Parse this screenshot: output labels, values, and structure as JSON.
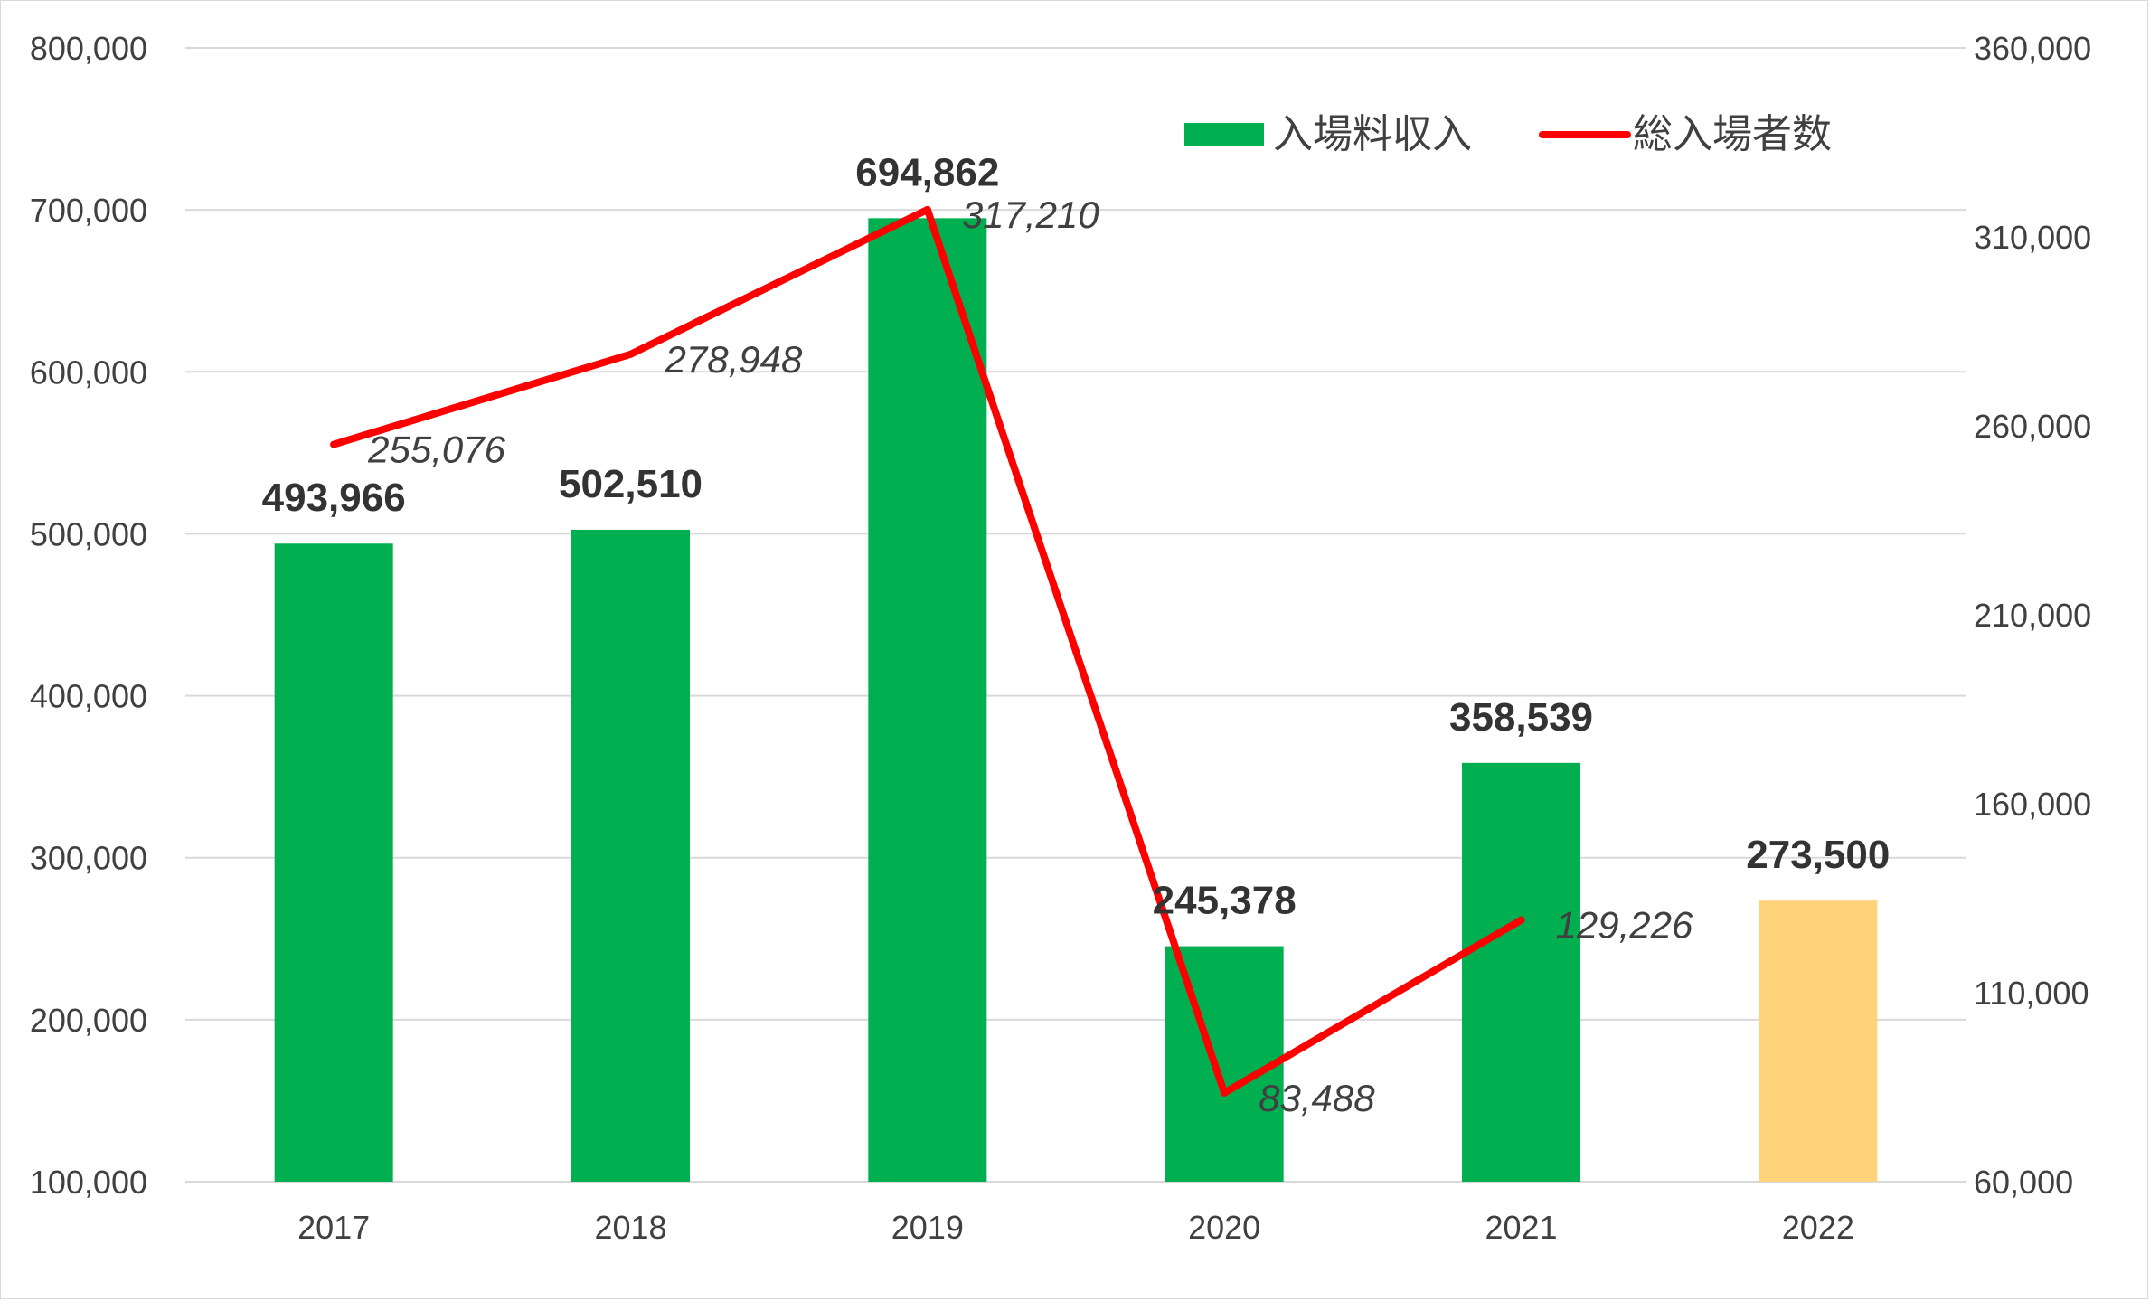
{
  "chart_data": {
    "type": "bar",
    "categories": [
      "2017",
      "2018",
      "2019",
      "2020",
      "2021",
      "2022"
    ],
    "series": [
      {
        "name": "入場料収入",
        "kind": "bar",
        "axis": "left",
        "color": "#00b050",
        "values": [
          493966,
          502510,
          694862,
          245378,
          358539,
          273500
        ],
        "labels": [
          "493,966",
          "502,510",
          "694,862",
          "245,378",
          "358,539",
          "273,500"
        ],
        "highlight_color": "#ffd37a",
        "highlight_index": 5
      },
      {
        "name": "総入場者数",
        "kind": "line",
        "axis": "right",
        "color": "#ff0000",
        "values": [
          255076,
          278948,
          317210,
          83488,
          129226,
          null
        ],
        "labels": [
          "255,076",
          "278,948",
          "317,210",
          "83,488",
          "129,226",
          ""
        ]
      }
    ],
    "y_left": {
      "ylim": [
        100000,
        800000
      ],
      "ticks": [
        "100,000",
        "200,000",
        "300,000",
        "400,000",
        "500,000",
        "600,000",
        "700,000",
        "800,000"
      ]
    },
    "y_right": {
      "ylim": [
        60000,
        360000
      ],
      "ticks": [
        "60,000",
        "110,000",
        "160,000",
        "210,000",
        "260,000",
        "310,000",
        "360,000"
      ]
    },
    "grid": true,
    "legend_position": "top-right",
    "gridline_color": "#d9d9d9"
  }
}
